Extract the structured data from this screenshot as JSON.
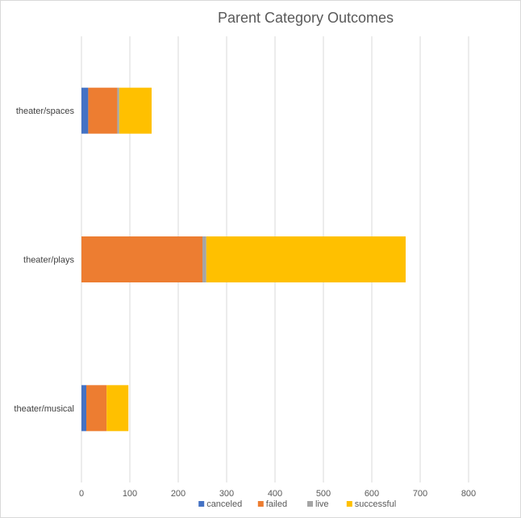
{
  "chart_data": {
    "type": "bar",
    "orientation": "horizontal",
    "stacked": true,
    "title": "Parent Category Outcomes",
    "xlabel": "",
    "ylabel": "",
    "xlim": [
      0,
      800
    ],
    "xticks": [
      0,
      100,
      200,
      300,
      400,
      500,
      600,
      700,
      800
    ],
    "grid": true,
    "legend_position": "bottom",
    "categories": [
      "theater/spaces",
      "theater/plays",
      "theater/musical"
    ],
    "series": [
      {
        "name": "canceled",
        "color": "#4472c4",
        "values": [
          14,
          0,
          10
        ]
      },
      {
        "name": "failed",
        "color": "#ed7d31",
        "values": [
          60,
          250,
          42
        ]
      },
      {
        "name": "live",
        "color": "#a5a5a5",
        "values": [
          4,
          8,
          0
        ]
      },
      {
        "name": "successful",
        "color": "#ffc000",
        "values": [
          67,
          412,
          45
        ]
      }
    ]
  }
}
